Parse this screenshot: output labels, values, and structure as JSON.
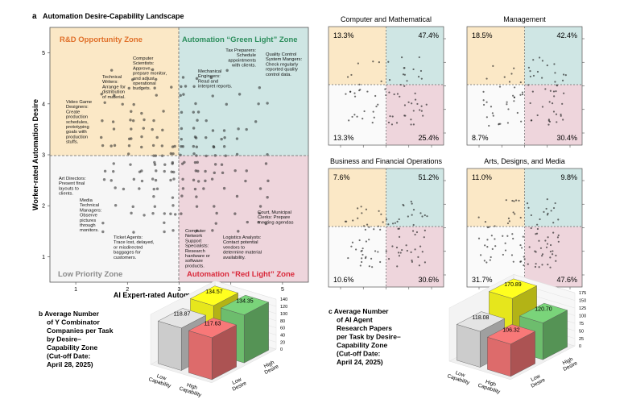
{
  "panel_a": {
    "label": "a",
    "title": "Automation Desire-Capability Landscape",
    "xlabel": "AI Expert-rated Automation Capability",
    "ylabel": "Worker-rated Automation Desire",
    "x_ticks": [
      "1",
      "2",
      "3",
      "4",
      "5"
    ],
    "y_ticks": [
      "1",
      "2",
      "3",
      "4",
      "5"
    ],
    "zones": {
      "rd": "R&D Opportunity Zone",
      "green": "Automation “Green Light” Zone",
      "low": "Low Priority Zone",
      "red": "Automation “Red Light” Zone"
    },
    "colors": {
      "rd": "#fbe8c6",
      "green": "#cfe6e4",
      "low": "#f6f6f6",
      "red": "#eed5dc",
      "rd_text": "#e0702a",
      "green_text": "#2e8f5e",
      "red_text": "#d9283a",
      "low_text": "#8a8a8a"
    },
    "annotations": [
      {
        "id": "video-game",
        "text": "Video Game\nDesigners:\nCreate\nproduction\nschedules,\nprototyping\ngoals with\nproduction\nstuffs."
      },
      {
        "id": "tech-writers",
        "text": "Technical\nWriters:\nArrange for\ndistribution\nof material."
      },
      {
        "id": "comp-sci",
        "text": "Computer\nScientists:\nApprove,\nprepare monitor,\nand adjust\noperational\nbudgets."
      },
      {
        "id": "tax-prep",
        "text": "Tax Preparers:\nSchedule\nappointments\nwith clients."
      },
      {
        "id": "qc-mgr",
        "text": "Quality Control\nSystem Mangers:\nCheck regularly\nreported quality\ncontrol data."
      },
      {
        "id": "mech-eng",
        "text": "Mechanical\nEngineers:\nRead and\ninterpret reports."
      },
      {
        "id": "art-dir",
        "text": "Art Directors:\nPresent final\nlayouts to\nclients."
      },
      {
        "id": "media-tech",
        "text": "Media\nTechnical\nManagers:\nObserve\npictures\nthrough\nmonitors."
      },
      {
        "id": "ticket",
        "text": "Ticket Agents:\nTrace lost, delayed,\nor misdirected\nbaggages for\ncustomers."
      },
      {
        "id": "net-support",
        "text": "Computer\nNetwork\nSupport\nSpecialists:\nResearch\nhardware or\nsoftware\nproducts."
      },
      {
        "id": "logistics",
        "text": "Logistics Analysts:\nContact potential\nvendors to\ndetermine material\navailability."
      },
      {
        "id": "clerks",
        "text": "Court, Municipal\nClerks: Prepare\nmeeting agendas"
      }
    ]
  },
  "panels_small": [
    {
      "title": "Computer and Mathematical",
      "tl": "13.3%",
      "tr": "47.4%",
      "bl": "13.3%",
      "br": "25.4%"
    },
    {
      "title": "Management",
      "tl": "18.5%",
      "tr": "42.4%",
      "bl": "8.7%",
      "br": "30.4%"
    },
    {
      "title": "Business and Financial Operations",
      "tl": "7.6%",
      "tr": "51.2%",
      "bl": "10.6%",
      "br": "30.6%"
    },
    {
      "title": "Arts, Designs, and Media",
      "tl": "11.0%",
      "tr": "9.8%",
      "bl": "31.7%",
      "br": "47.6%"
    }
  ],
  "chart_data": [
    {
      "type": "bar",
      "panel": "b",
      "title": "Average Number of Y Combinator Companies per Task by Desire–Capability Zone (Cut-off Date: April 28, 2025)",
      "title_lines": [
        "b  Average Number",
        "of Y Combinator",
        "Companies per Task",
        "by Desire–",
        "Capability Zone",
        "(Cut-off Date:",
        "April 28, 2025)"
      ],
      "xlabel": [
        "Low",
        "Capability",
        "High",
        "Capability"
      ],
      "ylabel": [
        "Low",
        "Desire",
        "High",
        "Desire"
      ],
      "zticks": [
        "0",
        "20",
        "40",
        "60",
        "80",
        "100",
        "120",
        "140"
      ],
      "zlim": [
        0,
        140
      ],
      "bars": [
        {
          "capability": "Low",
          "desire": "Low",
          "value": 118.87,
          "label": "118.87",
          "color": "#cccccc"
        },
        {
          "capability": "High",
          "desire": "Low",
          "value": 117.63,
          "label": "117.63",
          "color": "#dd6b6b"
        },
        {
          "capability": "Low",
          "desire": "High",
          "value": 134.57,
          "label": "134.57",
          "color": "#e6e61c"
        },
        {
          "capability": "High",
          "desire": "High",
          "value": 134.35,
          "label": "134.35",
          "color": "#6dbd6d"
        }
      ]
    },
    {
      "type": "bar",
      "panel": "c",
      "title": "Average Number of AI Agent Research Papers per Task by Desire–Capability Zone (Cut-off Date: April 24, 2025)",
      "title_lines": [
        "c  Average Number",
        "of AI Agent",
        "Research Papers",
        "per Task by Desire–",
        "Capability Zone",
        "(Cut-off Date:",
        "April 24, 2025)"
      ],
      "xlabel": [
        "Low",
        "Capability",
        "High",
        "Capability"
      ],
      "ylabel": [
        "Low",
        "Desire",
        "High",
        "Desire"
      ],
      "zticks": [
        "0",
        "25",
        "50",
        "75",
        "100",
        "125",
        "150",
        "175"
      ],
      "zlim": [
        0,
        175
      ],
      "bars": [
        {
          "capability": "Low",
          "desire": "Low",
          "value": 118.08,
          "label": "118.08",
          "color": "#cccccc"
        },
        {
          "capability": "High",
          "desire": "Low",
          "value": 106.32,
          "label": "106.32",
          "color": "#dd6b6b"
        },
        {
          "capability": "Low",
          "desire": "High",
          "value": 170.89,
          "label": "170.89",
          "color": "#e6e61c"
        },
        {
          "capability": "High",
          "desire": "High",
          "value": 120.7,
          "label": "120.70",
          "color": "#6dbd6d"
        }
      ]
    }
  ]
}
